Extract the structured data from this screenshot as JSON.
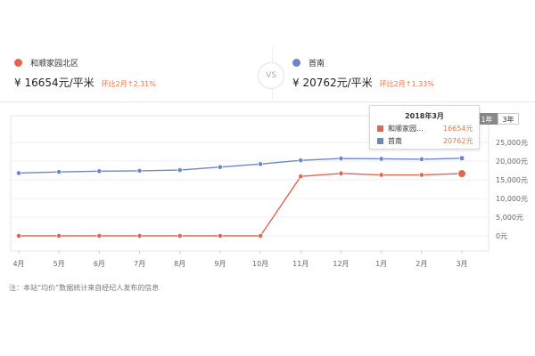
{
  "compare": {
    "left": {
      "name": "和顺家园北区",
      "price": "¥  16654元/平米",
      "change": "环比2月↑2.31%",
      "color": "#e06650"
    },
    "vs": "VS",
    "right": {
      "name": "首南",
      "price": "¥  20762元/平米",
      "change": "环比2月↑1.33%",
      "color": "#6b87c8"
    }
  },
  "range_tabs": [
    {
      "label": "1年",
      "active": true
    },
    {
      "label": "3年",
      "active": false
    }
  ],
  "tooltip": {
    "title": "2018年3月",
    "rows": [
      {
        "name": "和顺家园...",
        "value": "16654元",
        "color": "#e06650"
      },
      {
        "name": "首南",
        "value": "20762元",
        "color": "#6b87c8"
      }
    ]
  },
  "note": "注：本站“均价”数据统计来自经纪人发布的信息",
  "chart_data": {
    "type": "line",
    "categories": [
      "4月",
      "5月",
      "6月",
      "7月",
      "8月",
      "9月",
      "10月",
      "11月",
      "12月",
      "1月",
      "2月",
      "3月"
    ],
    "series": [
      {
        "name": "和顺家园北区",
        "color": "#e06650",
        "values": [
          0,
          0,
          0,
          0,
          0,
          0,
          0,
          15900,
          16700,
          16300,
          16300,
          16654
        ]
      },
      {
        "name": "首南",
        "color": "#6b87c8",
        "values": [
          16800,
          17100,
          17300,
          17400,
          17600,
          18400,
          19200,
          20200,
          20700,
          20600,
          20500,
          20762
        ]
      }
    ],
    "y_ticks": [
      "0元",
      "5,000元",
      "10,000元",
      "15,000元",
      "20,000元",
      "25,000元"
    ],
    "ylim": [
      0,
      25000
    ],
    "grid": true
  }
}
